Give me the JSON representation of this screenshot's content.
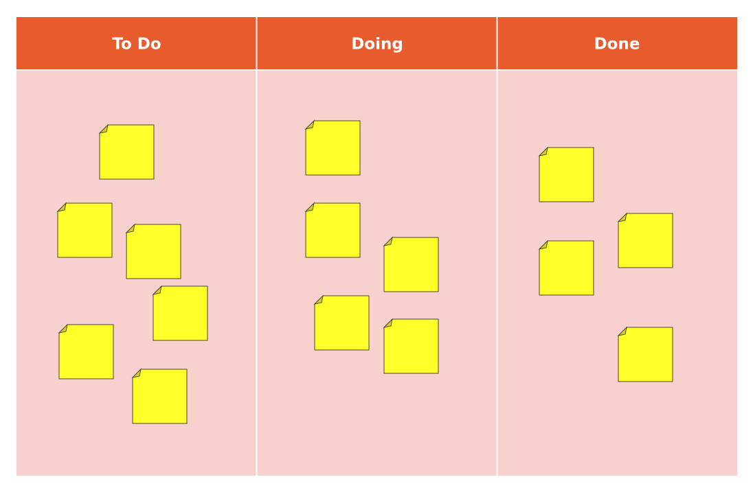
{
  "board": {
    "columns": [
      {
        "title": "To Do"
      },
      {
        "title": "Doing"
      },
      {
        "title": "Done"
      }
    ]
  }
}
